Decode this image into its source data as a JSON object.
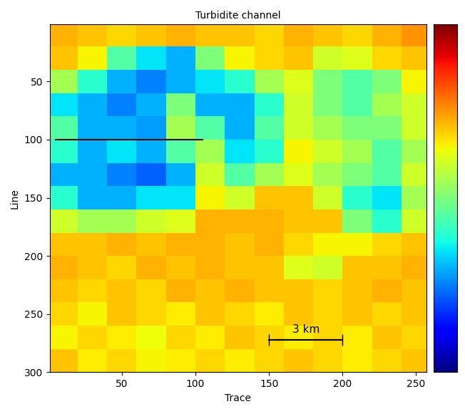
{
  "chart_data": {
    "type": "heatmap",
    "title": "Turbidite channel",
    "x_label": "Trace",
    "y_label": "Line",
    "xlim": [
      1,
      257
    ],
    "ylim": [
      300,
      1
    ],
    "xticks": [
      50,
      100,
      150,
      200,
      250
    ],
    "yticks": [
      50,
      100,
      150,
      200,
      250,
      300
    ],
    "x_edges": [
      0,
      20,
      40,
      60,
      80,
      100,
      120,
      140,
      160,
      180,
      200,
      220,
      240,
      260
    ],
    "y_edges": [
      0,
      20,
      40,
      60,
      80,
      100,
      120,
      140,
      160,
      180,
      200,
      220,
      240,
      260,
      280,
      300
    ],
    "cells": [
      [
        0.72,
        0.7,
        0.68,
        0.7,
        0.72,
        0.7,
        0.7,
        0.68,
        0.72,
        0.7,
        0.68,
        0.72,
        0.75
      ],
      [
        0.7,
        0.65,
        0.45,
        0.35,
        0.3,
        0.5,
        0.65,
        0.68,
        0.7,
        0.6,
        0.62,
        0.68,
        0.7
      ],
      [
        0.55,
        0.4,
        0.3,
        0.25,
        0.3,
        0.35,
        0.4,
        0.55,
        0.62,
        0.5,
        0.45,
        0.5,
        0.65
      ],
      [
        0.35,
        0.3,
        0.25,
        0.3,
        0.5,
        0.3,
        0.3,
        0.4,
        0.6,
        0.5,
        0.45,
        0.55,
        0.6
      ],
      [
        0.45,
        0.3,
        0.3,
        0.28,
        0.55,
        0.45,
        0.3,
        0.45,
        0.6,
        0.55,
        0.5,
        0.5,
        0.6
      ],
      [
        0.4,
        0.3,
        0.35,
        0.3,
        0.45,
        0.55,
        0.35,
        0.4,
        0.65,
        0.6,
        0.55,
        0.45,
        0.55
      ],
      [
        0.3,
        0.3,
        0.25,
        0.22,
        0.3,
        0.6,
        0.45,
        0.55,
        0.62,
        0.55,
        0.5,
        0.45,
        0.6
      ],
      [
        0.4,
        0.3,
        0.3,
        0.35,
        0.35,
        0.65,
        0.6,
        0.7,
        0.7,
        0.6,
        0.4,
        0.35,
        0.55
      ],
      [
        0.6,
        0.55,
        0.55,
        0.6,
        0.62,
        0.72,
        0.72,
        0.72,
        0.7,
        0.7,
        0.5,
        0.4,
        0.6
      ],
      [
        0.7,
        0.7,
        0.72,
        0.7,
        0.72,
        0.72,
        0.7,
        0.72,
        0.68,
        0.65,
        0.65,
        0.68,
        0.7
      ],
      [
        0.72,
        0.7,
        0.68,
        0.72,
        0.7,
        0.72,
        0.7,
        0.7,
        0.62,
        0.6,
        0.7,
        0.7,
        0.72
      ],
      [
        0.7,
        0.68,
        0.7,
        0.68,
        0.72,
        0.7,
        0.72,
        0.7,
        0.7,
        0.68,
        0.7,
        0.72,
        0.7
      ],
      [
        0.68,
        0.65,
        0.7,
        0.68,
        0.66,
        0.7,
        0.68,
        0.66,
        0.7,
        0.68,
        0.7,
        0.68,
        0.7
      ],
      [
        0.65,
        0.68,
        0.66,
        0.64,
        0.68,
        0.66,
        0.7,
        0.68,
        0.66,
        0.68,
        0.66,
        0.7,
        0.68
      ],
      [
        0.7,
        0.66,
        0.68,
        0.65,
        0.66,
        0.68,
        0.66,
        0.68,
        0.7,
        0.68,
        0.66,
        0.68,
        0.7
      ]
    ],
    "colorbar": {
      "range": [
        0,
        1
      ],
      "ticks": []
    },
    "lines": [
      {
        "x": [
          5,
          105
        ],
        "y": [
          100,
          100
        ],
        "color": "black"
      }
    ],
    "scale_bar": {
      "x": [
        150,
        200
      ],
      "y": 272,
      "label": "3 km",
      "color": "black"
    }
  }
}
